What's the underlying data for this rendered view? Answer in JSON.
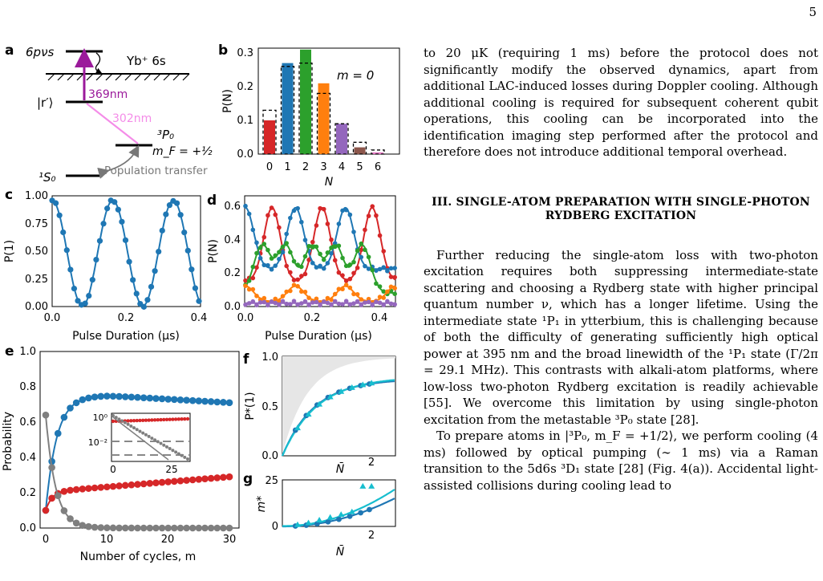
{
  "page_number": "5",
  "figure": {
    "panel_labels": [
      "a",
      "b",
      "c",
      "d",
      "e",
      "f",
      "g"
    ],
    "panel_a": {
      "levels": [
        "6pνs",
        "|r′⟩",
        "³P₀",
        "m_F = +½",
        "¹S₀"
      ],
      "ion_label": "Yb⁺ 6s",
      "transition_369": "369nm",
      "transition_302": "302nm",
      "population_transfer": "Population transfer",
      "colors": {
        "t369": "#9b1a9b",
        "t302": "#f48ce8",
        "transfer": "#777777"
      }
    },
    "axis_text": {
      "b_ylabel": "P(N)",
      "b_xlabel": "N",
      "b_note": "m = 0",
      "c_ylabel": "P(1)",
      "c_xlabel": "Pulse Duration (μs)",
      "d_ylabel": "P(N)",
      "d_xlabel": "Pulse Duration (μs)",
      "e_ylabel": "Probability",
      "e_xlabel": "Number of cycles, m",
      "f_ylabel": "P*(1)",
      "f_xlabel": "N̄",
      "g_ylabel": "m*",
      "g_xlabel": "N̄",
      "inset_y_1": "10⁰",
      "inset_y_2": "10⁻²",
      "inset_x_0": "0",
      "inset_x_25": "25"
    }
  },
  "chart_data": [
    {
      "panel": "b",
      "type": "bar",
      "categories": [
        "0",
        "1",
        "2",
        "3",
        "4",
        "5",
        "6"
      ],
      "series": [
        {
          "values": [
            0.1,
            0.27,
            0.31,
            0.21,
            0.09,
            0.02,
            0.005
          ],
          "colors": [
            "#d62728",
            "#1f77b4",
            "#2ca02c",
            "#ff7f0e",
            "#9467bd",
            "#8c564b",
            "#e377c2"
          ]
        },
        {
          "style": "dashed-outline",
          "values": [
            0.13,
            0.26,
            0.27,
            0.18,
            0.09,
            0.035,
            0.012
          ]
        }
      ],
      "ylim": [
        0,
        0.33
      ],
      "yticks": [
        "0.0",
        "0.1",
        "0.2",
        "0.3"
      ]
    },
    {
      "panel": "c",
      "type": "line",
      "xlim": [
        0,
        0.4
      ],
      "ylim": [
        0,
        1.0
      ],
      "xticks": [
        "0.0",
        "0.2",
        "0.4"
      ],
      "yticks": [
        "0.00",
        "0.25",
        "0.50",
        "0.75",
        "1.00"
      ],
      "series": [
        {
          "color": "#1f77b4",
          "model": "rabi",
          "amplitude": 0.96,
          "period_us": 0.165,
          "n_points": 41
        }
      ]
    },
    {
      "panel": "d",
      "type": "line",
      "xlim": [
        0,
        0.45
      ],
      "ylim": [
        0,
        0.65
      ],
      "xticks": [
        "0.0",
        "0.2",
        "0.4"
      ],
      "yticks": [
        "0.0",
        "0.2",
        "0.4",
        "0.6"
      ],
      "series": [
        {
          "color": "#d62728",
          "peaks_us": [
            0.08,
            0.23,
            0.38
          ],
          "peak": 0.58,
          "base": 0.15
        },
        {
          "color": "#1f77b4",
          "peaks_us": [
            0.0,
            0.15,
            0.3
          ],
          "peak": 0.58,
          "base": 0.22
        },
        {
          "color": "#2ca02c",
          "peaks_us": [
            0.05,
            0.12,
            0.2,
            0.27,
            0.35
          ],
          "peak": 0.36,
          "base": 0.08
        },
        {
          "color": "#ff7f0e",
          "peaks_us": [
            0.0,
            0.15,
            0.3,
            0.45
          ],
          "peak": 0.12,
          "base": 0.03
        },
        {
          "color": "#9467bd",
          "level": 0.02
        }
      ]
    },
    {
      "panel": "e",
      "type": "line",
      "xlim": [
        0,
        31
      ],
      "ylim": [
        0,
        1.0
      ],
      "xticks": [
        "0",
        "10",
        "20",
        "30"
      ],
      "yticks": [
        "0.0",
        "0.2",
        "0.4",
        "0.6",
        "0.8",
        "1.0"
      ],
      "series": [
        {
          "color": "#1f77b4",
          "shape": "rise-plateau",
          "start": 0.1,
          "peak": 0.75,
          "end": 0.71
        },
        {
          "color": "#d62728",
          "shape": "rise-log",
          "start": 0.1,
          "end": 0.29
        },
        {
          "color": "#7f7f7f",
          "shape": "decay",
          "start": 0.64,
          "end": 0.0
        }
      ]
    },
    {
      "panel": "f",
      "type": "line",
      "xlim": [
        0,
        2.6
      ],
      "ylim": [
        0,
        1.0
      ],
      "xticks": [
        "0",
        "2"
      ],
      "yticks": [
        "0.0",
        "0.5",
        "1.0"
      ],
      "series": [
        {
          "color": "#1f77b4"
        },
        {
          "color": "#17becf"
        }
      ]
    },
    {
      "panel": "g",
      "type": "line",
      "xlim": [
        0,
        2.6
      ],
      "ylim": [
        0,
        25
      ],
      "xticks": [
        "0",
        "2"
      ],
      "yticks": [
        "0",
        "25"
      ],
      "series": [
        {
          "color": "#1f77b4"
        },
        {
          "color": "#17becf"
        }
      ]
    }
  ],
  "text": {
    "para1": "to 20 μK (requiring 1 ms) before the protocol does not significantly modify the observed dynamics, apart from additional LAC-induced losses during Doppler cooling. Although additional cooling is required for subsequent coherent qubit operations, this cooling can be incorporated into the identification imaging step performed after the protocol and therefore does not introduce additional temporal overhead.",
    "section_title": "III.   SINGLE-ATOM PREPARATION WITH SINGLE-PHOTON RYDBERG EXCITATION",
    "para2": "Further reducing the single-atom loss with two-photon excitation requires both suppressing intermediate-state scattering and choosing a Rydberg state with higher principal quantum number ν, which has a longer lifetime. Using the intermediate state ¹P₁ in ytterbium, this is challenging because of both the difficulty of generating sufficiently high optical power at 395 nm and the broad linewidth of the ¹P₁ state (Γ/2π = 29.1 MHz). This contrasts with alkali-atom platforms, where low-loss two-photon Rydberg excitation is readily achievable [55]. We overcome this limitation by using single-photon excitation from the metastable ³P₀ state [28].",
    "para3": "To prepare atoms in |³P₀, m_F = +1/2⟩, we perform cooling (4 ms) followed by optical pumping (∼ 1 ms) via a Raman transition to the 5d6s ³D₁ state [28] (Fig. 4(a)). Accidental light-assisted collisions during cooling lead to"
  }
}
